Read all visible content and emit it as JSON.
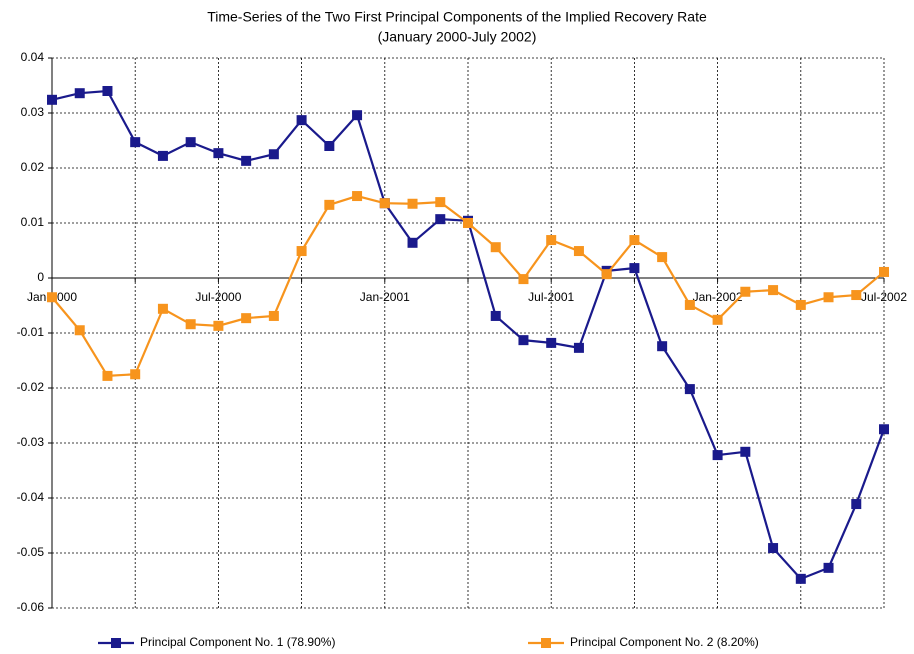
{
  "chart_data": {
    "type": "line",
    "title": "Time-Series of the Two First Principal Components of the Implied Recovery Rate",
    "subtitle": "(January 2000-July 2002)",
    "categories": [
      "Jan-2000",
      null,
      null,
      null,
      null,
      null,
      "Jul-2000",
      null,
      null,
      null,
      null,
      null,
      "Jan-2001",
      null,
      null,
      null,
      null,
      null,
      "Jul-2001",
      null,
      null,
      null,
      null,
      null,
      "Jan-2002",
      null,
      null,
      null,
      null,
      null,
      "Jul-2002"
    ],
    "series": [
      {
        "name": "Principal Component No. 1 (78.90%)",
        "color": "#1a1a8c",
        "values": [
          0.0324,
          0.0336,
          0.034,
          0.0247,
          0.0222,
          0.0247,
          0.0227,
          0.0213,
          0.0225,
          0.0287,
          0.024,
          0.0296,
          0.0136,
          0.0064,
          0.0107,
          0.0104,
          -0.0069,
          -0.0113,
          -0.0118,
          -0.0127,
          0.0013,
          0.0018,
          -0.0124,
          -0.0202,
          -0.0322,
          -0.0316,
          -0.0491,
          -0.0547,
          -0.0527,
          -0.0411,
          -0.0275
        ]
      },
      {
        "name": "Principal Component No. 2 (8.20%)",
        "color": "#f7941d",
        "values": [
          -0.0035,
          -0.0095,
          -0.0178,
          -0.0175,
          -0.0056,
          -0.0084,
          -0.0087,
          -0.0073,
          -0.0069,
          0.0049,
          0.0133,
          0.0149,
          0.0136,
          0.0135,
          0.0138,
          0.01,
          0.0056,
          -0.0002,
          0.0069,
          0.0049,
          0.0007,
          0.0069,
          0.0038,
          -0.0049,
          -0.0076,
          -0.0025,
          -0.0022,
          -0.0049,
          -0.0035,
          -0.0031,
          0.0011
        ]
      }
    ],
    "ylim": [
      -0.06,
      0.04
    ],
    "yticks": [
      -0.06,
      -0.05,
      -0.04,
      -0.03,
      -0.02,
      -0.01,
      0,
      0.01,
      0.02,
      0.03,
      0.04
    ],
    "grid": true,
    "legend": "bottom"
  }
}
